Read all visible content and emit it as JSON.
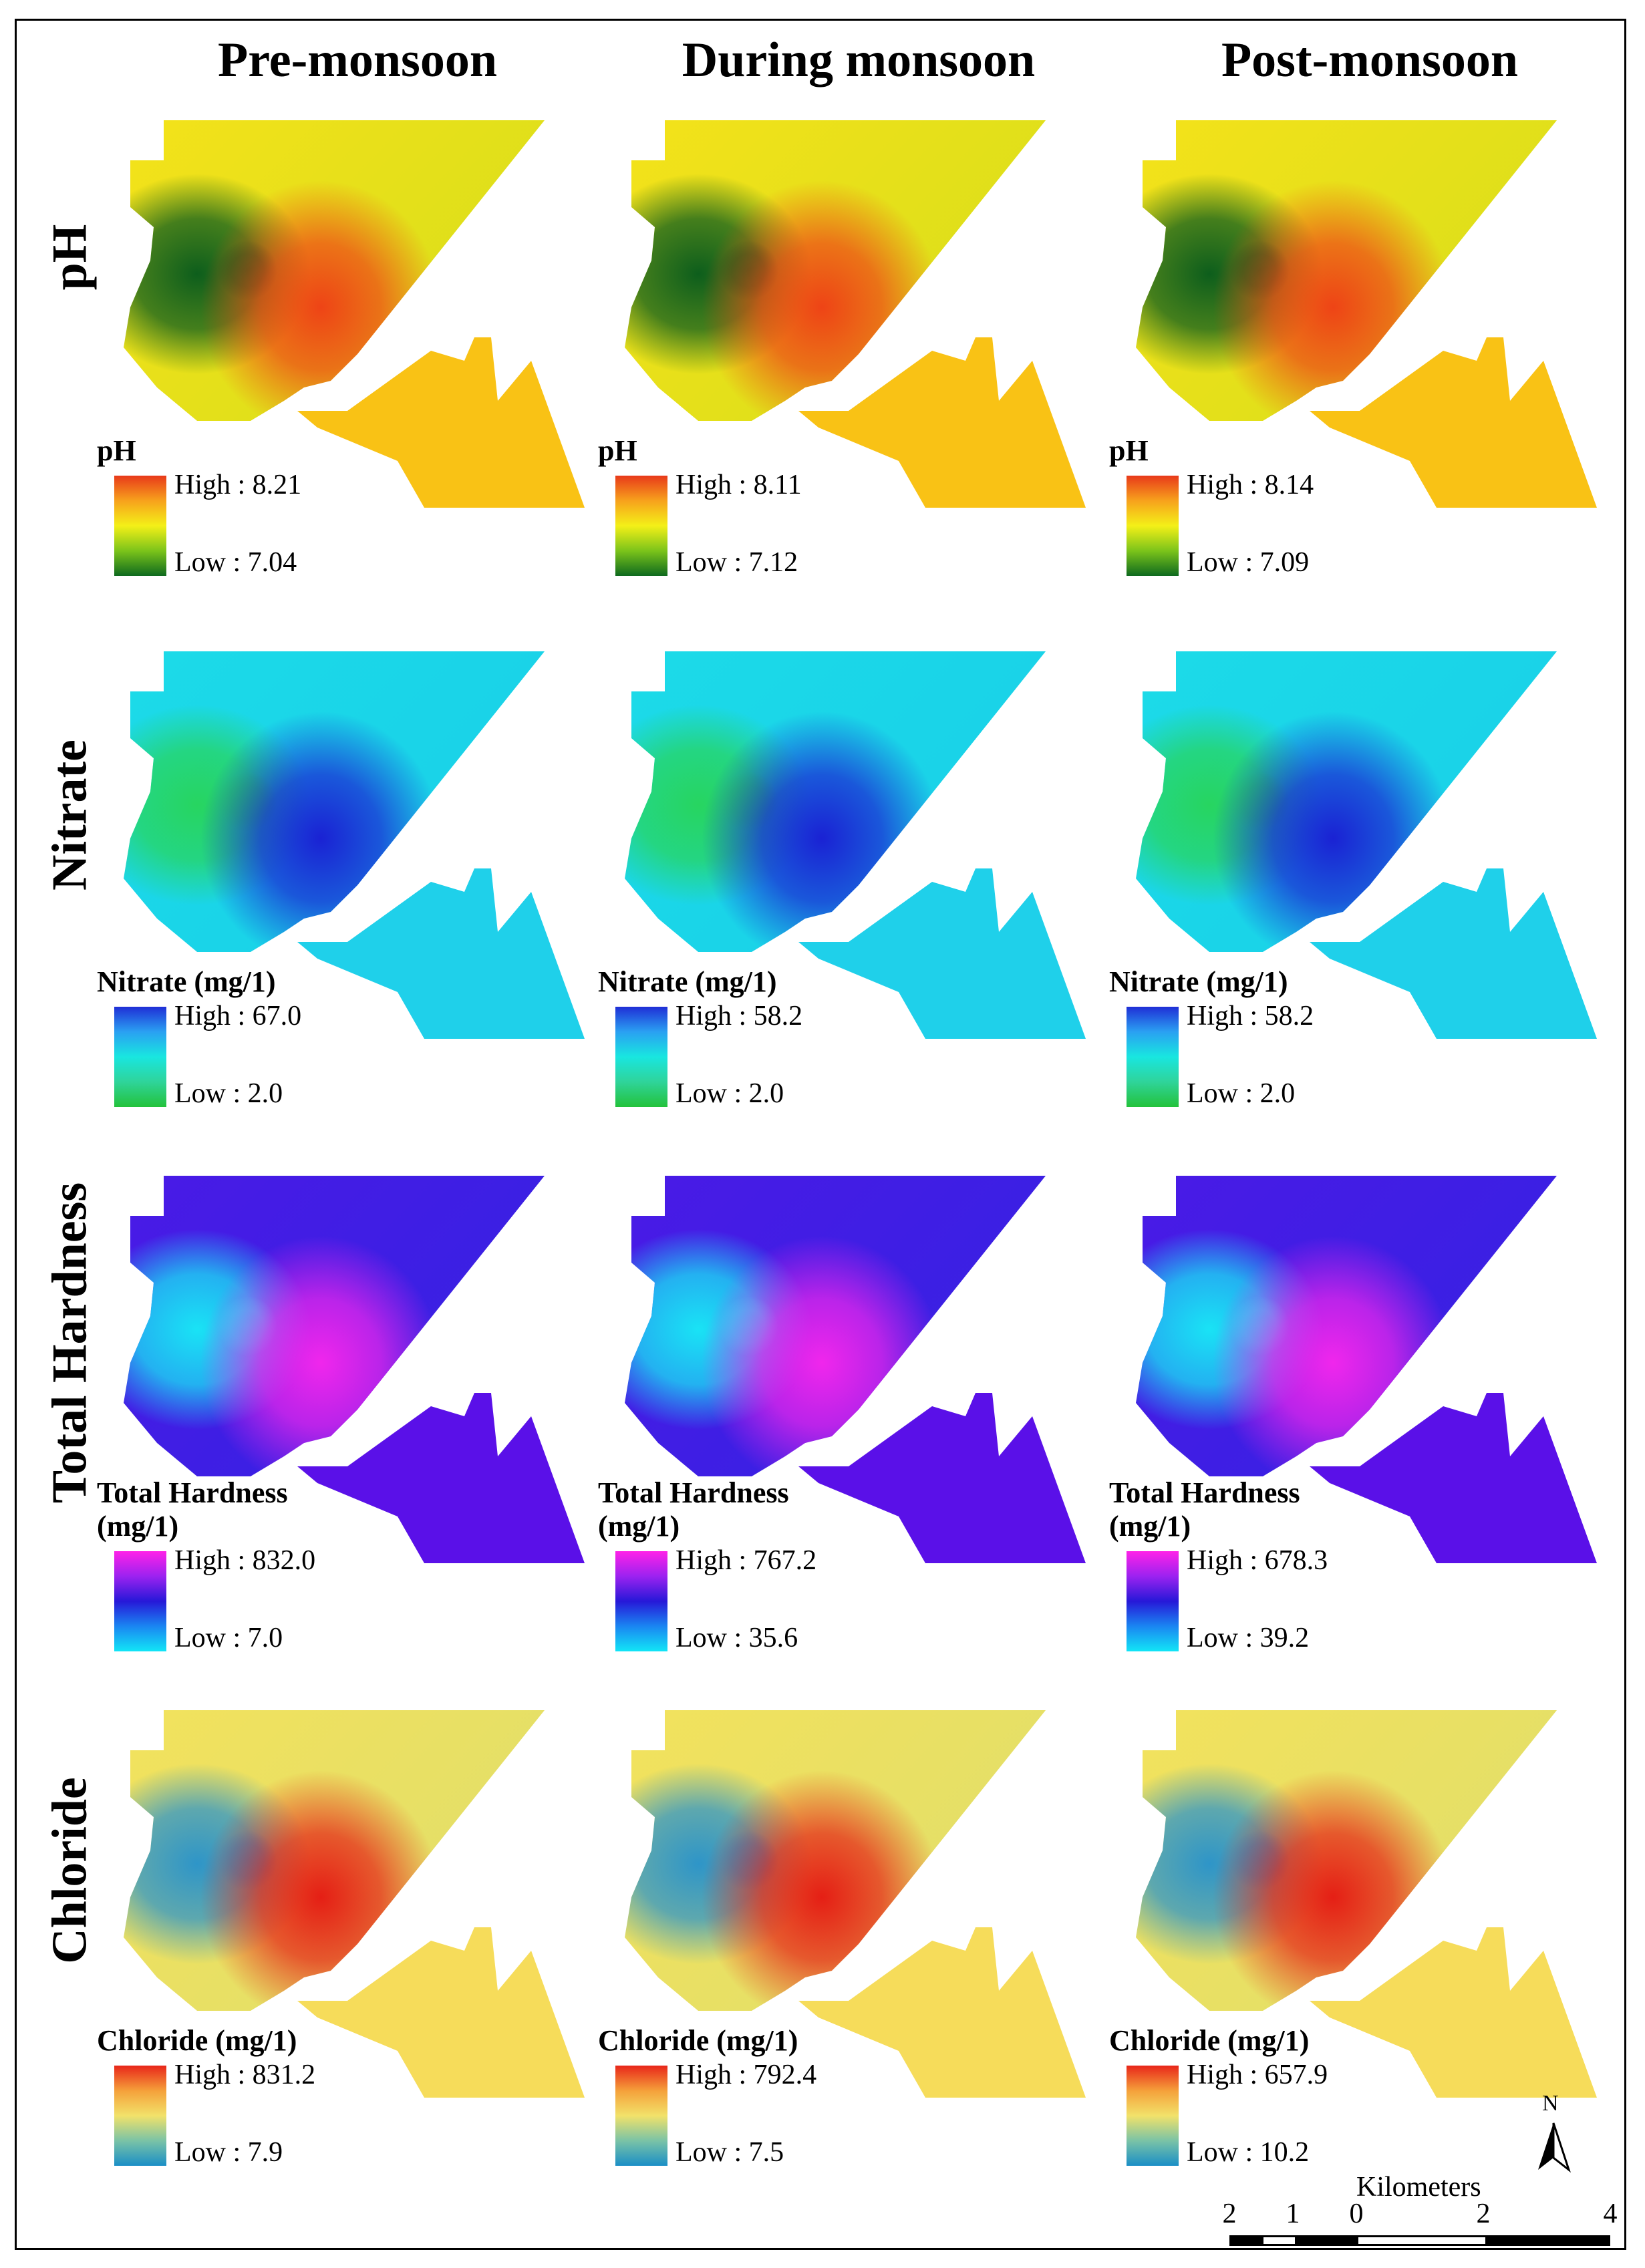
{
  "columns": [
    "Pre-monsoon",
    "During monsoon",
    "Post-monsoon"
  ],
  "rows": [
    {
      "title": "pH",
      "legend_title": "pH",
      "ramp": [
        "#e8391a",
        "#f7a21c",
        "#f4f018",
        "#7cc41a",
        "#0e6a1e"
      ],
      "map_colors": {
        "bg": [
          "#f5e21a",
          "#c8dc1a"
        ],
        "low": "#0d5e1c",
        "high": "#ee4416",
        "south": "#f9c215"
      },
      "panels": [
        {
          "high": "High : 8.21",
          "low": "Low : 7.04"
        },
        {
          "high": "High : 8.11",
          "low": "Low : 7.12"
        },
        {
          "high": "High : 8.14",
          "low": "Low : 7.09"
        }
      ]
    },
    {
      "title": "Nitrate",
      "legend_title": "Nitrate (mg/1)",
      "ramp": [
        "#1f2fd6",
        "#2aa0f2",
        "#19e6e0",
        "#2fd49a",
        "#23c23b"
      ],
      "map_colors": {
        "bg": [
          "#1cdbe8",
          "#17c9e8"
        ],
        "low": "#27d560",
        "high": "#1a22d4",
        "south": "#1fd0ea"
      },
      "panels": [
        {
          "high": "High : 67.0",
          "low": "Low : 2.0"
        },
        {
          "high": "High : 58.2",
          "low": "Low : 2.0"
        },
        {
          "high": "High : 58.2",
          "low": "Low : 2.0"
        }
      ]
    },
    {
      "title": "Total Hardness",
      "legend_title": "Total Hardness (mg/1)",
      "ramp": [
        "#ff22e8",
        "#9c22f0",
        "#2618d8",
        "#1a86f2",
        "#12e6f6"
      ],
      "map_colors": {
        "bg": [
          "#4a1ae6",
          "#2a26e0"
        ],
        "low": "#19e3f5",
        "high": "#f026ec",
        "south": "#5a10e8"
      },
      "panels": [
        {
          "high": "High : 832.0",
          "low": "Low : 7.0"
        },
        {
          "high": "High : 767.2",
          "low": "Low : 35.6"
        },
        {
          "high": "High : 678.3",
          "low": "Low : 39.2"
        }
      ]
    },
    {
      "title": "Chloride",
      "legend_title": "Chloride (mg/1)",
      "ramp": [
        "#e8261a",
        "#f5a03a",
        "#f2e26a",
        "#7ac3a6",
        "#1a8fc6"
      ],
      "map_colors": {
        "bg": [
          "#f3e25c",
          "#d6dc72"
        ],
        "low": "#2e95c8",
        "high": "#e51f15",
        "south": "#f6dc5a"
      },
      "panels": [
        {
          "high": "High : 831.2",
          "low": "Low : 7.9"
        },
        {
          "high": "High : 792.4",
          "low": "Low : 7.5"
        },
        {
          "high": "High : 657.9",
          "low": "Low : 10.2"
        }
      ]
    }
  ],
  "north_arrow": {
    "label": "N"
  },
  "scale_bar": {
    "unit": "Kilometers",
    "ticks": [
      "2",
      "1",
      "0",
      "2",
      "4"
    ]
  }
}
